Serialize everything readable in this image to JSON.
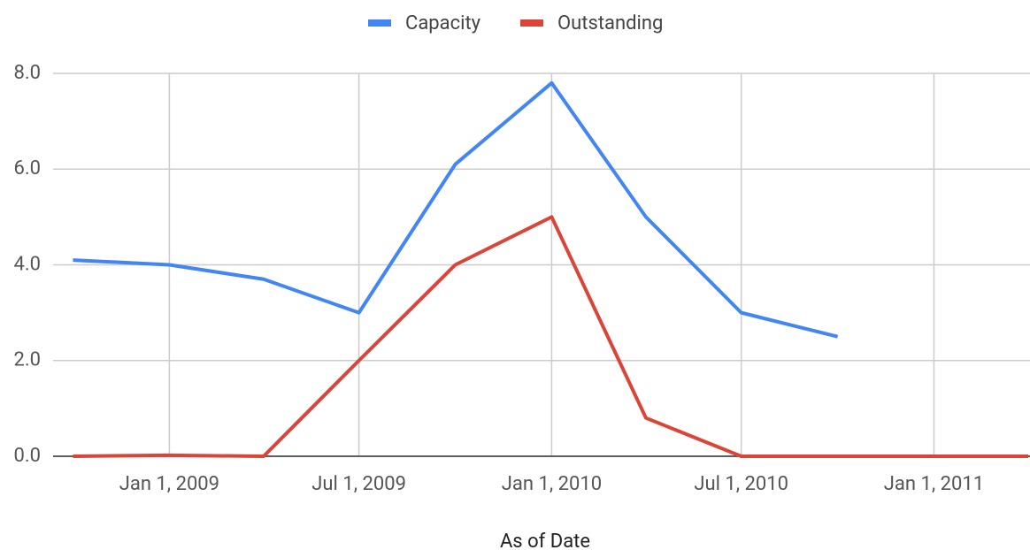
{
  "chart_data": {
    "type": "line",
    "x_label": "As of Date",
    "x": [
      "2008-10-01",
      "2009-01-01",
      "2009-04-01",
      "2009-07-01",
      "2009-10-01",
      "2010-01-01",
      "2010-04-01",
      "2010-07-01",
      "2010-10-01",
      "2011-01-01",
      "2011-04-01"
    ],
    "series": [
      {
        "name": "Capacity",
        "color": "#4285f4",
        "values": [
          4.1,
          4.0,
          3.7,
          3.0,
          6.1,
          7.8,
          5.0,
          3.0,
          2.5,
          null,
          null
        ]
      },
      {
        "name": "Outstanding",
        "color": "#db4437",
        "values": [
          0,
          0.02,
          0,
          2,
          4,
          5,
          0.8,
          0,
          0,
          0,
          0
        ]
      }
    ],
    "xlim": [
      "2008-09-12",
      "2011-04-01"
    ],
    "xticks": [
      {
        "value": "2009-01-01",
        "label": "Jan 1, 2009"
      },
      {
        "value": "2009-07-01",
        "label": "Jul 1, 2009"
      },
      {
        "value": "2010-01-01",
        "label": "Jan 1, 2010"
      },
      {
        "value": "2010-07-01",
        "label": "Jul 1, 2010"
      },
      {
        "value": "2011-01-01",
        "label": "Jan 1, 2011"
      }
    ],
    "ylim": [
      0,
      8
    ],
    "yticks": [
      {
        "value": 0,
        "label": "0.0"
      },
      {
        "value": 2,
        "label": "2.0"
      },
      {
        "value": 4,
        "label": "4.0"
      },
      {
        "value": 6,
        "label": "6.0"
      },
      {
        "value": 8,
        "label": "8.0"
      }
    ],
    "grid": true,
    "legend": "top"
  }
}
